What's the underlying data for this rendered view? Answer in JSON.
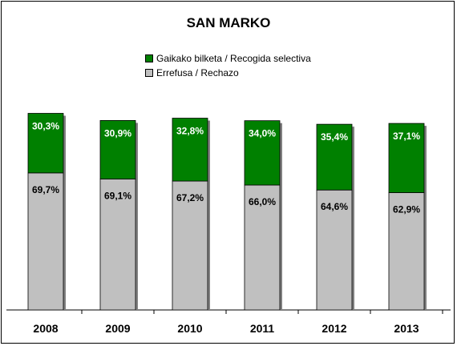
{
  "chart_data": {
    "type": "bar",
    "stacked": true,
    "normalized": true,
    "title": "SAN MARKO",
    "categories": [
      "2008",
      "2009",
      "2010",
      "2011",
      "2012",
      "2013"
    ],
    "series": [
      {
        "name": "Errefusa / Rechazo",
        "values": [
          69.7,
          69.1,
          67.2,
          66.0,
          64.6,
          62.9
        ],
        "labels": [
          "69,7%",
          "69,1%",
          "67,2%",
          "66,0%",
          "64,6%",
          "62,9%"
        ],
        "color": "#c0c0c0"
      },
      {
        "name": "Gaikako bilketa / Recogida selectiva",
        "values": [
          30.3,
          30.9,
          32.8,
          34.0,
          35.4,
          37.1
        ],
        "labels": [
          "30,3%",
          "30,9%",
          "32,8%",
          "34,0%",
          "35,4%",
          "37,1%"
        ],
        "color": "#008000"
      }
    ],
    "total_fill": [
      0.937,
      0.903,
      0.914,
      0.902,
      0.885,
      0.889
    ],
    "ylim": [
      0,
      100
    ],
    "legend_position": "top-center",
    "grid": false
  }
}
